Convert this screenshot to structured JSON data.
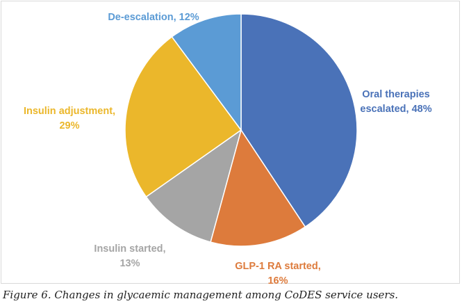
{
  "chart_data": {
    "type": "pie",
    "slices": [
      {
        "label": "Oral therapies escalated",
        "value": 48,
        "color": "#4a72b8",
        "label_color": "#4a72b8",
        "label_lines": [
          "Oral therapies",
          "escalated, 48%"
        ]
      },
      {
        "label": "GLP-1 RA started",
        "value": 16,
        "color": "#dd7b3c",
        "label_color": "#dd7b3c",
        "label_lines": [
          "GLP-1 RA started,",
          "16%"
        ]
      },
      {
        "label": "Insulin started",
        "value": 13,
        "color": "#a5a5a5",
        "label_color": "#a5a5a5",
        "label_lines": [
          "Insulin started,",
          "13%"
        ]
      },
      {
        "label": "Insulin adjustment",
        "value": 29,
        "color": "#ebb72b",
        "label_color": "#ebb72b",
        "label_lines": [
          "Insulin adjustment,",
          "29%"
        ]
      },
      {
        "label": "De-escalation",
        "value": 12,
        "color": "#5b9bd5",
        "label_color": "#5b9bd5",
        "label_lines": [
          "De-escalation, 12%"
        ]
      }
    ],
    "start_angle_deg": 0,
    "direction": "clockwise",
    "legend": "none"
  },
  "caption": "Figure 6. Changes in glycaemic management among CoDES service users."
}
